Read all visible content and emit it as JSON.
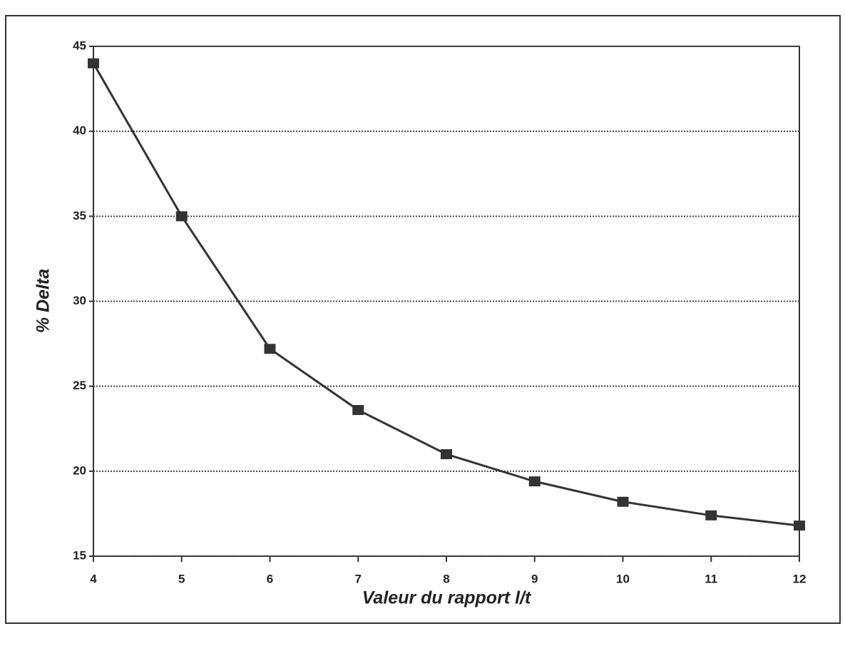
{
  "chart_data": {
    "type": "line",
    "x_label": "Valeur du rapport l/t",
    "y_label": "% Delta",
    "x": [
      4,
      5,
      6,
      7,
      8,
      9,
      10,
      11,
      12
    ],
    "series": [
      {
        "color": "#333333",
        "values": [
          44,
          35,
          27.2,
          23.6,
          21,
          19.4,
          18.2,
          17.4,
          16.8
        ]
      }
    ],
    "xlim": [
      4,
      12
    ],
    "xticks": [
      4,
      5,
      6,
      7,
      8,
      9,
      10,
      11,
      12
    ],
    "ylim": [
      15,
      45
    ],
    "yticks": [
      15,
      20,
      25,
      30,
      35,
      40,
      45
    ],
    "grid": true
  }
}
